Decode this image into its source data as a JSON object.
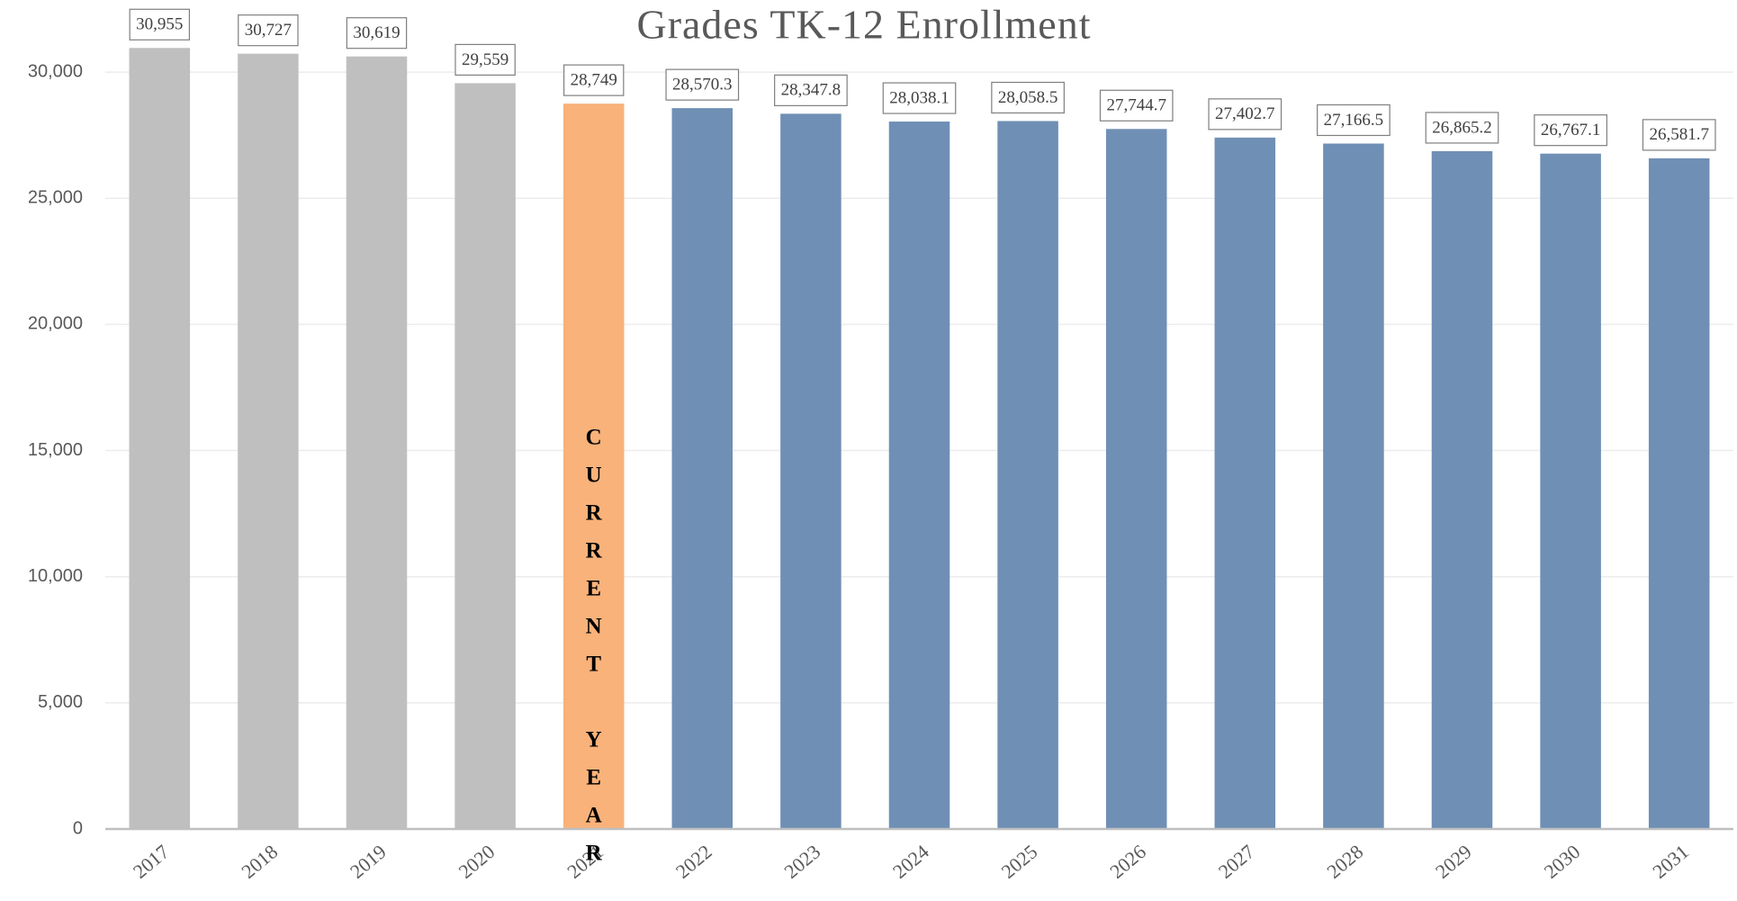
{
  "chart_data": {
    "type": "bar",
    "title": "Grades TK-12 Enrollment",
    "categories": [
      "2017",
      "2018",
      "2019",
      "2020",
      "2021",
      "2022",
      "2023",
      "2024",
      "2025",
      "2026",
      "2027",
      "2028",
      "2029",
      "2030",
      "2031"
    ],
    "values": [
      30955,
      30727,
      30619,
      29559,
      28749,
      28570.3,
      28347.8,
      28038.1,
      28058.5,
      27744.7,
      27402.7,
      27166.5,
      26865.2,
      26767.1,
      26581.7
    ],
    "value_labels": [
      "30,955",
      "30,727",
      "30,619",
      "29,559",
      "28,749",
      "28,570.3",
      "28,347.8",
      "28,038.1",
      "28,058.5",
      "27,744.7",
      "27,402.7",
      "27,166.5",
      "26,865.2",
      "26,767.1",
      "26,581.7"
    ],
    "colors": [
      "#bfbfbf",
      "#bfbfbf",
      "#bfbfbf",
      "#bfbfbf",
      "#f8b27a",
      "#6f8fb5",
      "#6f8fb5",
      "#6f8fb5",
      "#6f8fb5",
      "#6f8fb5",
      "#6f8fb5",
      "#6f8fb5",
      "#6f8fb5",
      "#6f8fb5",
      "#6f8fb5"
    ],
    "annotations": [
      {
        "text": "CURRENT YEAR",
        "category": "2021"
      }
    ],
    "ylim": [
      0,
      32000
    ],
    "yticks": [
      0,
      {
        "value": 5000,
        "label": "5,000"
      },
      {
        "value": 10000,
        "label": "10,000"
      },
      {
        "value": 15000,
        "label": "15,000"
      },
      {
        "value": 20000,
        "label": "20,000"
      },
      {
        "value": 25000,
        "label": "25,000"
      },
      {
        "value": 30000,
        "label": "30,000"
      }
    ],
    "grid": true
  }
}
